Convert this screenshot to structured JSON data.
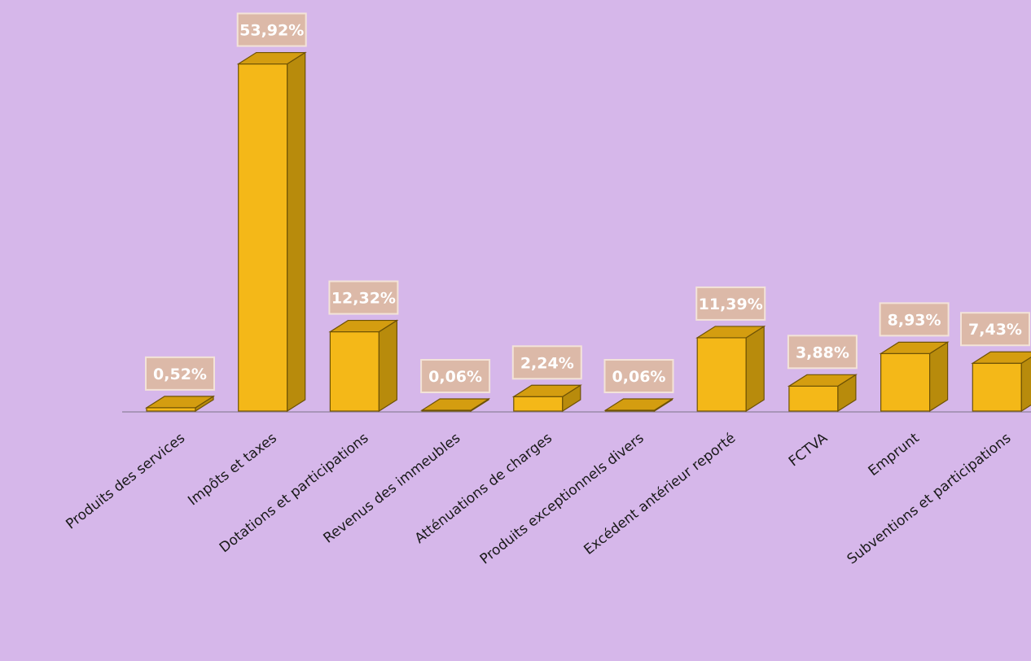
{
  "chart_data": {
    "type": "bar",
    "title": "",
    "xlabel": "",
    "ylabel": "",
    "ylim": [
      0,
      55
    ],
    "grid": false,
    "legend": "none",
    "categories": [
      "Produits des services",
      "Impôts et taxes",
      "Dotations et participations",
      "Revenus des immeubles",
      "Atténuations de charges",
      "Produits exceptionnels divers",
      "Excédent antérieur reporté",
      "FCTVA",
      "Emprunt",
      "Subventions et participations"
    ],
    "values": [
      0.52,
      53.92,
      12.32,
      0.06,
      2.24,
      0.06,
      11.39,
      3.88,
      8.93,
      7.43
    ],
    "data_labels": [
      "0,52%",
      "53,92%",
      "12,32%",
      "0,06%",
      "2,24%",
      "0,06%",
      "11,39%",
      "3,88%",
      "8,93%",
      "7,43%"
    ]
  },
  "colors": {
    "background": "#d6b7ea",
    "bar_front": "#f4b818",
    "bar_side": "#b88b0c",
    "bar_top": "#d49d10",
    "bar_outline": "#6e5205",
    "label_box": "#dcb9a8",
    "label_box_border": "#f3e3d8",
    "label_text": "#ffffff",
    "axis_text": "#1a1a1a",
    "axis_line": "#9a8aa8"
  }
}
